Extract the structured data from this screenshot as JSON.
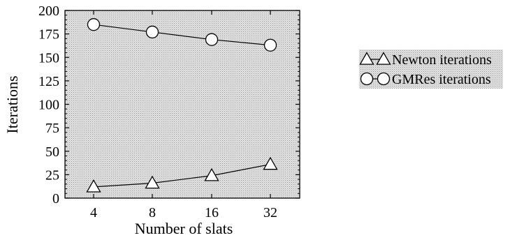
{
  "chart_data": {
    "type": "line",
    "title": "",
    "xlabel": "Number of slats",
    "ylabel": "Iterations",
    "x_scale": "log2",
    "categories": [
      4,
      8,
      16,
      32
    ],
    "x_ticks": [
      "4",
      "8",
      "16",
      "32"
    ],
    "ylim": [
      0,
      200
    ],
    "y_ticks": [
      "0",
      "25",
      "50",
      "75",
      "100",
      "125",
      "150",
      "175",
      "200"
    ],
    "grid": false,
    "legend_position": "right",
    "background": "#cfcfcf",
    "series": [
      {
        "name": "Newton iterations",
        "marker": "triangle",
        "values": [
          12,
          16,
          24,
          36
        ]
      },
      {
        "name": "GMRes iterations",
        "marker": "circle",
        "values": [
          185,
          177,
          169,
          163
        ]
      }
    ]
  }
}
